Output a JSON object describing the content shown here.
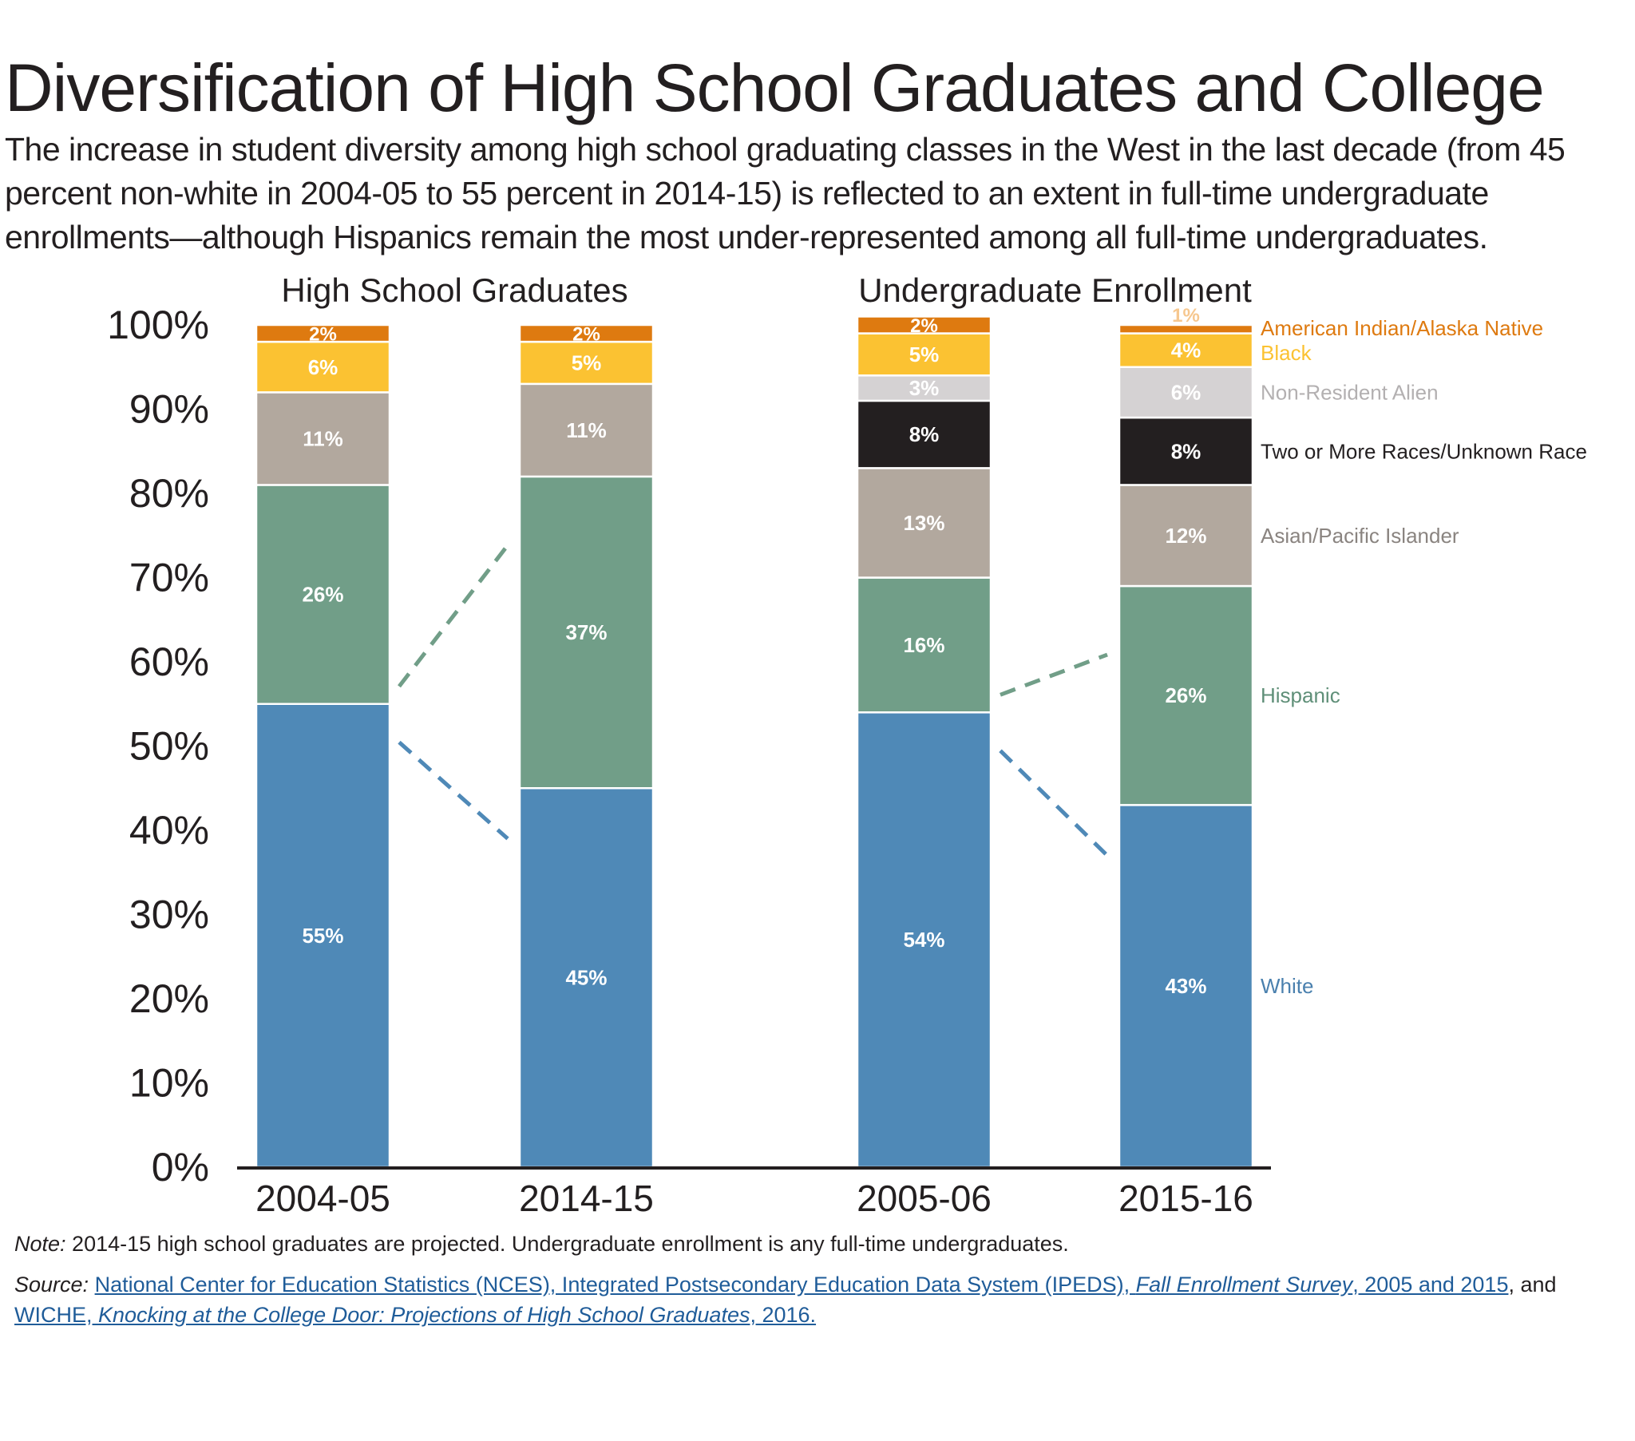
{
  "title": "Diversification of High School Graduates and College",
  "subtitle": "The increase in student diversity among high school graduating classes in the West in the last decade (from 45 percent non-white in 2004-05 to 55 percent in 2014-15) is reflected to an extent in full-time undergraduate enrollments—although Hispanics remain the most under-represented among all full-time undergraduates.",
  "note": {
    "label": "Note:",
    "text": " 2014-15 high school graduates are projected. Undergraduate enrollment is any full-time undergraduates."
  },
  "source": {
    "label": "Source:",
    "link1_a": "National Center for Education Statistics (NCES), Integrated Postsecondary Education Data System (IPEDS), ",
    "link1_b": "Fall Enrollment Survey",
    "link1_c": ", 2005 and 2015",
    "and": ", and ",
    "link2_a": "WICHE, ",
    "link2_b": "Knocking at the College Door: Projections of High School Graduates",
    "link2_c": ", 2016."
  },
  "colors": {
    "White": "#4f89b7",
    "Hispanic": "#719e88",
    "Asian/Pacific Islander": "#b2a89e",
    "Two or More Races/Unknown Race": "#231f20",
    "Non-Resident Alien": "#d5d2d3",
    "Black": "#fbc232",
    "American Indian/Alaska Native": "#de7a10"
  },
  "chart_data": {
    "type": "bar",
    "stacked": true,
    "ylim": [
      0,
      100
    ],
    "yticks": [
      "0%",
      "10%",
      "20%",
      "30%",
      "40%",
      "50%",
      "60%",
      "70%",
      "80%",
      "90%",
      "100%"
    ],
    "groups": [
      {
        "title": "High School Graduates",
        "categories": [
          "2004-05",
          "2014-15"
        ]
      },
      {
        "title": "Undergraduate Enrollment",
        "categories": [
          "2005-06",
          "2015-16"
        ]
      }
    ],
    "categories": [
      "2004-05",
      "2014-15",
      "2005-06",
      "2015-16"
    ],
    "series": [
      {
        "name": "White",
        "values": [
          55,
          45,
          54,
          43
        ],
        "labels": [
          "55%",
          "45%",
          "54%",
          "43%"
        ],
        "label_color": "#ffffff"
      },
      {
        "name": "Hispanic",
        "values": [
          26,
          37,
          16,
          26
        ],
        "labels": [
          "26%",
          "37%",
          "16%",
          "26%"
        ],
        "label_color": "#ffffff"
      },
      {
        "name": "Asian/Pacific Islander",
        "values": [
          11,
          11,
          13,
          12
        ],
        "labels": [
          "11%",
          "11%",
          "13%",
          "12%"
        ],
        "label_color": "#ffffff"
      },
      {
        "name": "Two or More Races/Unknown Race",
        "values": [
          0,
          0,
          8,
          8
        ],
        "labels": [
          "",
          "",
          "8%",
          "8%"
        ],
        "label_color": "#ffffff"
      },
      {
        "name": "Non-Resident Alien",
        "values": [
          0,
          0,
          3,
          6
        ],
        "labels": [
          "",
          "",
          "3%",
          "6%"
        ],
        "label_color": "#ffffff"
      },
      {
        "name": "Black",
        "values": [
          6,
          5,
          5,
          4
        ],
        "labels": [
          "6%",
          "5%",
          "5%",
          "4%"
        ],
        "label_color": "#ffffff"
      },
      {
        "name": "American Indian/Alaska Native",
        "values": [
          2,
          2,
          2,
          1
        ],
        "labels": [
          "2%",
          "2%",
          "2%",
          "1%"
        ],
        "label_color": "#ffffff"
      }
    ],
    "legend": [
      {
        "name": "American Indian/Alaska Native",
        "color": "#de7a10"
      },
      {
        "name": "Black",
        "color": "#fbc232"
      },
      {
        "name": "Non-Resident Alien",
        "color": "#b3b0b1"
      },
      {
        "name": "Two or More Races/Unknown Race",
        "color": "#231f20"
      },
      {
        "name": "Asian/Pacific Islander",
        "color": "#8a8480"
      },
      {
        "name": "Hispanic",
        "color": "#5f8f78"
      },
      {
        "name": "White",
        "color": "#4a80ae"
      }
    ],
    "legend_placement": "right of last bar, aligned with segments"
  }
}
